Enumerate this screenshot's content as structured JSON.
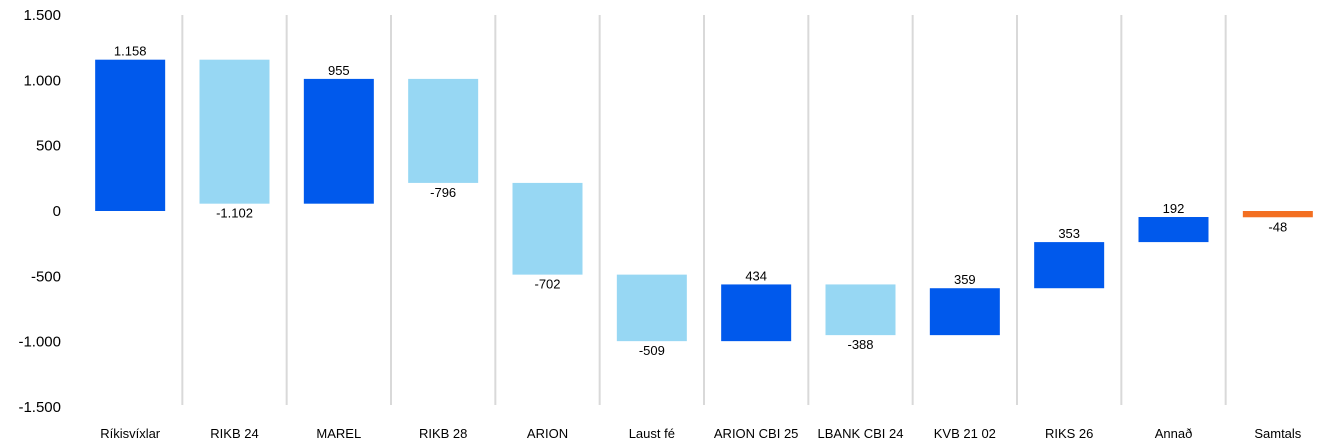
{
  "chart_data": {
    "type": "bar",
    "subtype": "waterfall",
    "title": "",
    "xlabel": "",
    "ylabel": "",
    "ylim": [
      -1500,
      1500
    ],
    "yticks": [
      1500,
      1000,
      500,
      0,
      -500,
      -1000,
      -1500
    ],
    "ytick_labels": [
      "1.500",
      "1.000",
      "500",
      "0",
      "-500",
      "-1.000",
      "-1.500"
    ],
    "grid": false,
    "legend": "none",
    "colors": {
      "increase": "#0059ec",
      "decrease": "#97d7f3",
      "total": "#f36f21",
      "separator": "#d9d9d9"
    },
    "categories": [
      "Ríkisvíxlar",
      "RIKB 24",
      "MAREL",
      "RIKB 28",
      "ARION",
      "Laust fé",
      "ARION CBI 25",
      "LBANK CBI 24",
      "KVB 21 02",
      "RIKS 26",
      "Annað",
      "Samtals"
    ],
    "values": [
      1158,
      -1102,
      955,
      -796,
      -702,
      -509,
      434,
      -388,
      359,
      353,
      192,
      -48
    ],
    "value_labels": [
      "1.158",
      "-1.102",
      "955",
      "-796",
      "-702",
      "-509",
      "434",
      "-388",
      "359",
      "353",
      "192",
      "-48"
    ],
    "kinds": [
      "increase",
      "decrease",
      "increase",
      "decrease",
      "decrease",
      "decrease",
      "increase",
      "decrease",
      "increase",
      "increase",
      "increase",
      "total"
    ]
  }
}
